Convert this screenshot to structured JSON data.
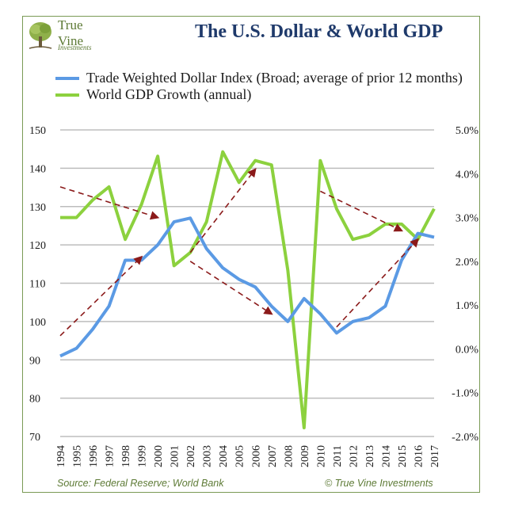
{
  "logo": {
    "line1": "True",
    "line2": "Vine",
    "line3": "Investments"
  },
  "title": "The U.S. Dollar & World GDP",
  "footer": {
    "source": "Source: Federal Reserve; World Bank",
    "copyright": "© True Vine Investments"
  },
  "colors": {
    "dollar": "#5b9ae4",
    "gdp": "#8cd13e",
    "trend": "#8b1a1a",
    "title": "#1f3a6b",
    "frame": "#7a9a55"
  },
  "chart_data": {
    "type": "line",
    "title": "The U.S. Dollar & World GDP",
    "x": [
      "1994",
      "1995",
      "1996",
      "1997",
      "1998",
      "1999",
      "2000",
      "2001",
      "2002",
      "2003",
      "2004",
      "2005",
      "2006",
      "2007",
      "2008",
      "2009",
      "2010",
      "2011",
      "2012",
      "2013",
      "2014",
      "2015",
      "2016",
      "2017"
    ],
    "y_left": {
      "ylim": [
        70,
        150
      ],
      "ticks": [
        "70",
        "80",
        "90",
        "100",
        "110",
        "120",
        "130",
        "140",
        "150"
      ]
    },
    "y_right": {
      "ylim": [
        -2.0,
        5.0
      ],
      "ticks": [
        "-2.0%",
        "-1.0%",
        "0.0%",
        "1.0%",
        "2.0%",
        "3.0%",
        "4.0%",
        "5.0%"
      ]
    },
    "grid": "horizontal",
    "series": [
      {
        "name": "Trade Weighted Dollar Index (Broad; average of prior 12 months)",
        "axis": "left",
        "values": [
          91,
          93,
          98,
          104,
          116,
          116,
          120,
          126,
          127,
          119,
          114,
          111,
          109,
          104,
          100,
          106,
          102,
          97,
          100,
          101,
          104,
          116,
          123,
          122
        ]
      },
      {
        "name": "World GDP Growth (annual)",
        "axis": "right",
        "values": [
          3.0,
          3.0,
          3.4,
          3.7,
          2.5,
          3.3,
          4.4,
          1.9,
          2.2,
          2.9,
          4.5,
          3.8,
          4.3,
          4.2,
          1.8,
          -1.8,
          4.3,
          3.2,
          2.5,
          2.6,
          2.85,
          2.85,
          2.5,
          3.2
        ]
      }
    ],
    "trend_arrows": [
      {
        "from": [
          "1994",
          3.7
        ],
        "to": [
          "2000",
          3.0
        ]
      },
      {
        "from": [
          "1994",
          0.3
        ],
        "to": [
          "1999",
          2.1
        ]
      },
      {
        "from": [
          "2002",
          2.0
        ],
        "to": [
          "2007",
          0.8
        ]
      },
      {
        "from": [
          "2002",
          2.2
        ],
        "to": [
          "2006",
          4.1
        ]
      },
      {
        "from": [
          "2010",
          3.6
        ],
        "to": [
          "2015",
          2.7
        ]
      },
      {
        "from": [
          "2011",
          0.5
        ],
        "to": [
          "2016",
          2.5
        ]
      }
    ]
  }
}
